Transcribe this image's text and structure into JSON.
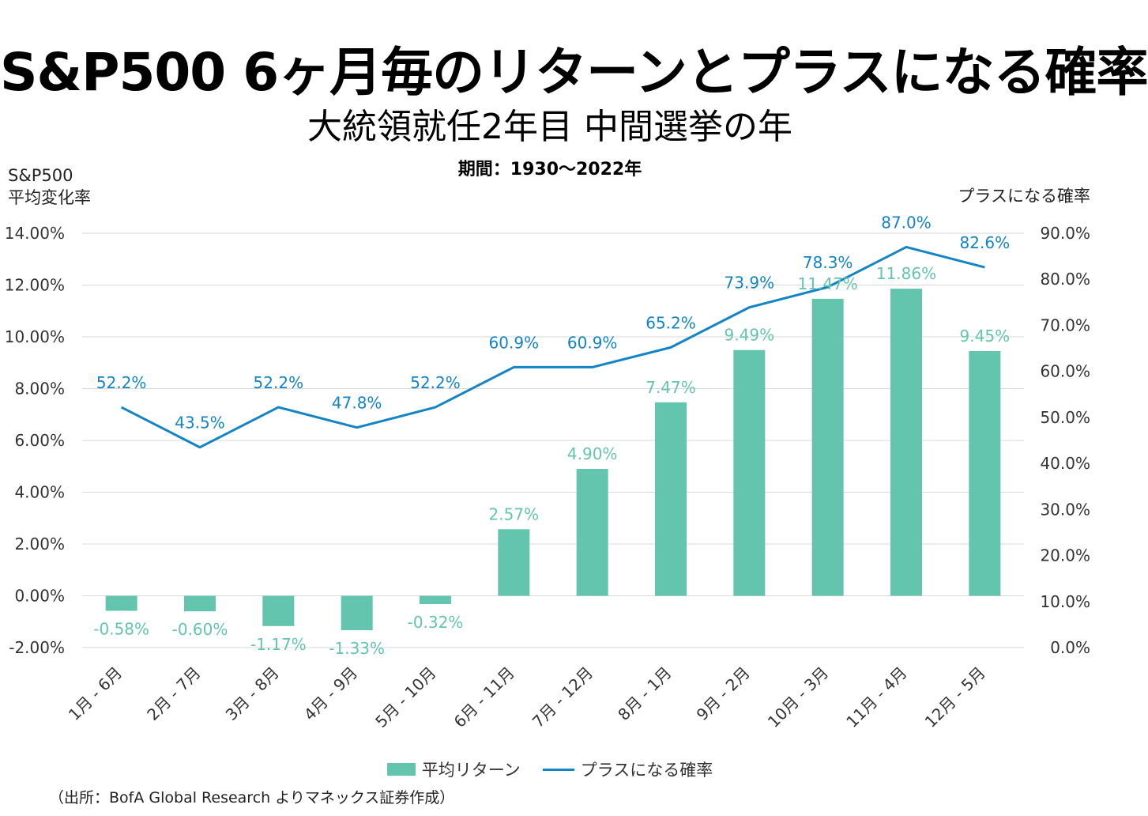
{
  "header": {
    "title": "S&P500 6ヶ月毎のリターンとプラスになる確率",
    "subtitle": "大統領就任2年目 中間選挙の年",
    "period": "期間：1930〜2022年"
  },
  "axes": {
    "left_label_line1": "S&P500",
    "left_label_line2": "平均変化率",
    "right_label": "プラスになる確率"
  },
  "legend": {
    "bar_label": "平均リターン",
    "line_label": "プラスになる確率"
  },
  "source": "（出所：BofA Global Research よりマネックス証券作成）",
  "colors": {
    "bar": "#63c5ad",
    "line": "#1384c6",
    "grid": "#d9d9d9"
  },
  "chart_data": {
    "type": "bar",
    "title": "S&P500 6ヶ月毎のリターンとプラスになる確率",
    "categories": [
      "1月 - 6月",
      "2月 - 7月",
      "3月 - 8月",
      "4月 - 9月",
      "5月 - 10月",
      "6月 - 11月",
      "7月 - 12月",
      "8月 - 1月",
      "9月 - 2月",
      "10月 - 3月",
      "11月 - 4月",
      "12月 - 5月"
    ],
    "series": [
      {
        "name": "平均リターン",
        "type": "bar",
        "axis": "left",
        "values": [
          -0.58,
          -0.6,
          -1.17,
          -1.33,
          -0.32,
          2.57,
          4.9,
          7.47,
          9.49,
          11.47,
          11.86,
          9.45
        ],
        "labels": [
          "-0.58%",
          "-0.60%",
          "-1.17%",
          "-1.33%",
          "-0.32%",
          "2.57%",
          "4.90%",
          "7.47%",
          "9.49%",
          "11.47%",
          "11.86%",
          "9.45%"
        ]
      },
      {
        "name": "プラスになる確率",
        "type": "line",
        "axis": "right",
        "values": [
          52.2,
          43.5,
          52.2,
          47.8,
          52.2,
          60.9,
          60.9,
          65.2,
          73.9,
          78.3,
          87.0,
          82.6
        ],
        "labels": [
          "52.2%",
          "43.5%",
          "52.2%",
          "47.8%",
          "52.2%",
          "60.9%",
          "60.9%",
          "65.2%",
          "73.9%",
          "78.3%",
          "87.0%",
          "82.6%"
        ]
      }
    ],
    "ylim_left": [
      -2,
      14
    ],
    "yticks_left": [
      "-2.00%",
      "0.00%",
      "2.00%",
      "4.00%",
      "6.00%",
      "8.00%",
      "10.00%",
      "12.00%",
      "14.00%"
    ],
    "ylim_right": [
      0,
      90
    ],
    "yticks_right": [
      "0.0%",
      "10.0%",
      "20.0%",
      "30.0%",
      "40.0%",
      "50.0%",
      "60.0%",
      "70.0%",
      "80.0%",
      "90.0%"
    ],
    "ylabel_left": "S&P500 平均変化率",
    "ylabel_right": "プラスになる確率",
    "grid": true,
    "legend_position": "bottom"
  }
}
